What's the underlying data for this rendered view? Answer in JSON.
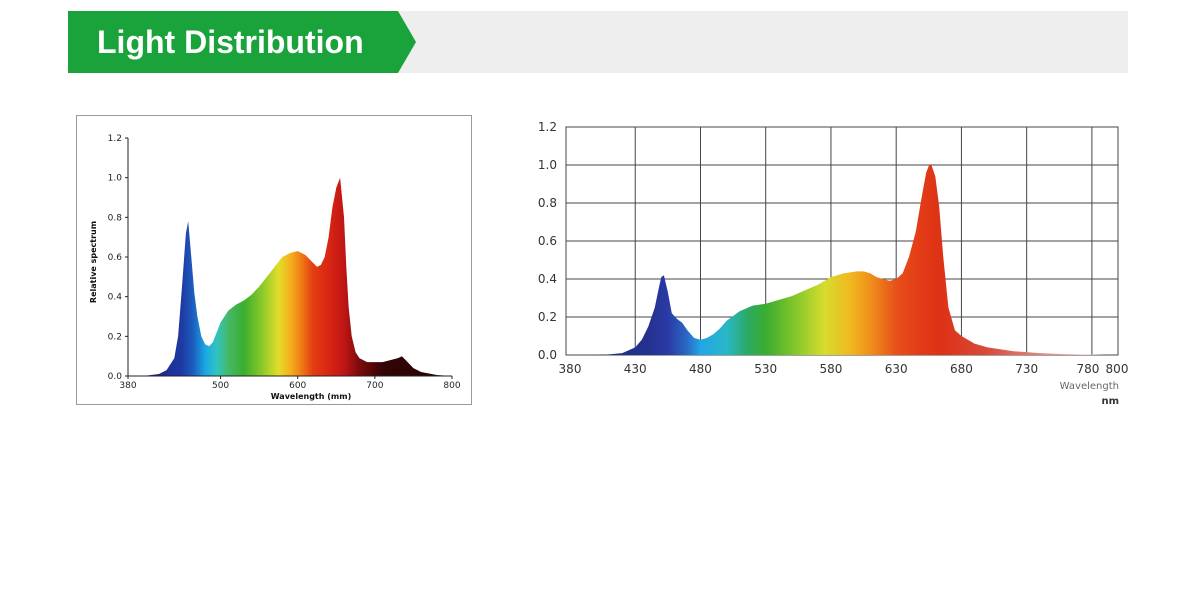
{
  "header": {
    "title": "Light Distribution",
    "colors": {
      "tab": "#1aa33a",
      "bar": "#eeeeee",
      "text": "#ffffff"
    }
  },
  "chart_data": [
    {
      "type": "area",
      "xlabel": "Wavelength (mm)",
      "ylabel": "Relative spectrum",
      "xlim": [
        380,
        800
      ],
      "ylim": [
        0,
        1.2
      ],
      "x_ticks": [
        "380",
        "500",
        "600",
        "700",
        "800"
      ],
      "y_ticks": [
        "0.0",
        "0.2",
        "0.4",
        "0.6",
        "0.8",
        "1.0",
        "1.2"
      ],
      "grid": false,
      "fill": "spectral gradient",
      "x": [
        380,
        400,
        410,
        420,
        430,
        440,
        445,
        450,
        455,
        458,
        462,
        466,
        470,
        475,
        480,
        485,
        490,
        495,
        500,
        510,
        520,
        530,
        540,
        550,
        560,
        570,
        580,
        590,
        600,
        605,
        610,
        620,
        625,
        630,
        635,
        640,
        645,
        650,
        655,
        660,
        663,
        666,
        670,
        675,
        680,
        690,
        700,
        710,
        720,
        730,
        735,
        740,
        750,
        760,
        780,
        800
      ],
      "y": [
        0,
        0,
        0.005,
        0.01,
        0.03,
        0.09,
        0.2,
        0.45,
        0.72,
        0.78,
        0.6,
        0.42,
        0.3,
        0.2,
        0.16,
        0.15,
        0.17,
        0.22,
        0.27,
        0.33,
        0.36,
        0.38,
        0.41,
        0.45,
        0.5,
        0.55,
        0.6,
        0.62,
        0.63,
        0.62,
        0.61,
        0.57,
        0.55,
        0.56,
        0.6,
        0.7,
        0.85,
        0.95,
        1.0,
        0.8,
        0.55,
        0.35,
        0.2,
        0.12,
        0.09,
        0.07,
        0.07,
        0.07,
        0.08,
        0.09,
        0.1,
        0.08,
        0.04,
        0.02,
        0.005,
        0
      ]
    },
    {
      "type": "area",
      "xlabel": "Wavelength",
      "unit": "nm",
      "xlim": [
        380,
        800
      ],
      "ylim": [
        0,
        1.2
      ],
      "x_ticks": [
        "380",
        "430",
        "480",
        "530",
        "580",
        "630",
        "680",
        "730",
        "780",
        "800"
      ],
      "y_ticks": [
        "0.0",
        "0.2",
        "0.4",
        "0.6",
        "0.8",
        "1.0",
        "1.2"
      ],
      "grid": true,
      "fill": "spectral gradient",
      "x": [
        400,
        410,
        420,
        430,
        435,
        440,
        445,
        448,
        450,
        452,
        455,
        458,
        462,
        466,
        470,
        475,
        480,
        485,
        490,
        495,
        500,
        510,
        520,
        530,
        540,
        550,
        560,
        570,
        580,
        590,
        600,
        605,
        610,
        615,
        620,
        625,
        630,
        635,
        640,
        645,
        650,
        653,
        655,
        657,
        660,
        663,
        666,
        670,
        675,
        680,
        690,
        700,
        720,
        740,
        760,
        780,
        790
      ],
      "y": [
        0,
        0.003,
        0.01,
        0.04,
        0.08,
        0.15,
        0.25,
        0.35,
        0.41,
        0.42,
        0.33,
        0.22,
        0.19,
        0.17,
        0.13,
        0.09,
        0.08,
        0.09,
        0.11,
        0.14,
        0.18,
        0.23,
        0.26,
        0.27,
        0.29,
        0.31,
        0.34,
        0.37,
        0.41,
        0.43,
        0.44,
        0.44,
        0.43,
        0.41,
        0.4,
        0.39,
        0.4,
        0.43,
        0.52,
        0.65,
        0.85,
        0.96,
        0.995,
        1.0,
        0.94,
        0.78,
        0.52,
        0.25,
        0.13,
        0.1,
        0.06,
        0.04,
        0.02,
        0.01,
        0.005,
        0.002,
        0
      ]
    }
  ]
}
